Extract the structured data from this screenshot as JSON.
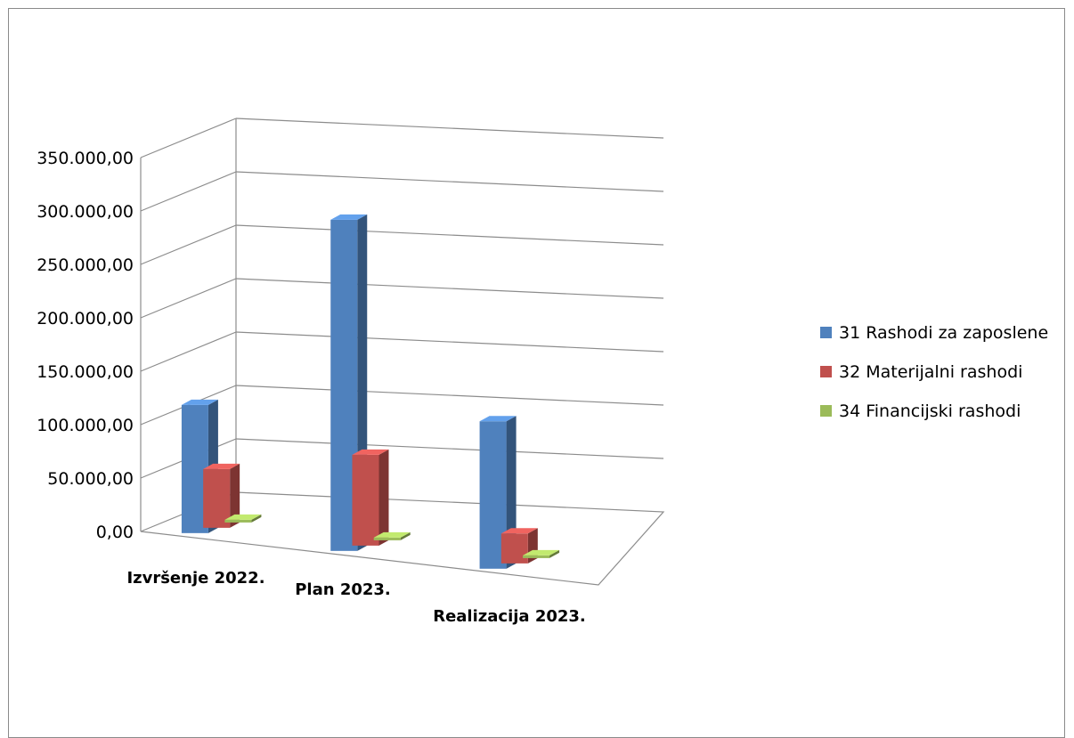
{
  "chart_data": {
    "type": "bar",
    "three_d": true,
    "categories": [
      "Izvršenje 2022.",
      "Plan 2023.",
      "Realizacija 2023."
    ],
    "series": [
      {
        "name": "31 Rashodi za zaposlene",
        "color": "#4F81BD",
        "values": [
          120000,
          310000,
          138000
        ]
      },
      {
        "name": "32 Materijalni rashodi",
        "color": "#C0504D",
        "values": [
          55000,
          85000,
          28000
        ]
      },
      {
        "name": "34 Financijski rashodi",
        "color": "#9BBB59",
        "values": [
          1000,
          1200,
          800
        ]
      }
    ],
    "yticks": [
      "0,00",
      "50.000,00",
      "100.000,00",
      "150.000,00",
      "200.000,00",
      "250.000,00",
      "300.000,00",
      "350.000,00"
    ],
    "ylim": [
      0,
      350000
    ],
    "grid": true,
    "legend": "right"
  }
}
